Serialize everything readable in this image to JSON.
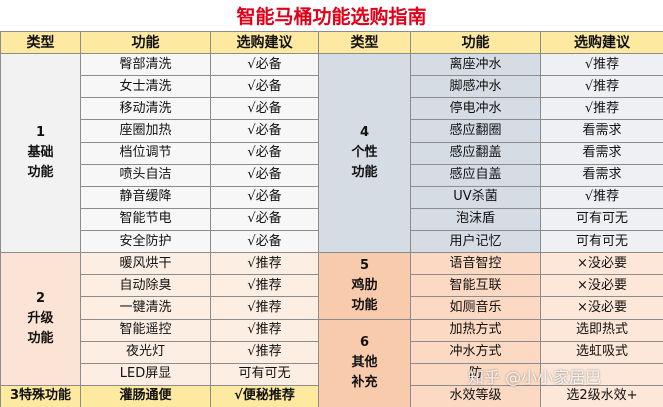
{
  "title": "智能马桶功能选购指南",
  "headers": [
    "类型",
    "功能",
    "选购建议",
    "类型",
    "功能",
    "选购建议"
  ],
  "left": [
    {
      "type": [
        "1",
        "基础",
        "功能"
      ],
      "type_color": "#f2f2f2",
      "func_color": "#f7f7f7",
      "advice_color": "#f7f7f7",
      "rows": [
        {
          "function": "臀部清洗",
          "advice": "√必备"
        },
        {
          "function": "女士清洗",
          "advice": "√必备"
        },
        {
          "function": "移动清洗",
          "advice": "√必备"
        },
        {
          "function": "座圈加热",
          "advice": "√必备"
        },
        {
          "function": "档位调节",
          "advice": "√必备"
        },
        {
          "function": "喷头自洁",
          "advice": "√必备"
        },
        {
          "function": "静音缓降",
          "advice": "√必备"
        },
        {
          "function": "智能节电",
          "advice": "√必备"
        },
        {
          "function": "安全防护",
          "advice": "√必备"
        }
      ]
    },
    {
      "type": [
        "2",
        "升级",
        "功能"
      ],
      "type_color": "#fbe4d5",
      "func_color": "#fdeee4",
      "advice_color": "#fdeee4",
      "rows": [
        {
          "function": "暖风烘干",
          "advice": "√推荐"
        },
        {
          "function": "自动除臭",
          "advice": "√推荐"
        },
        {
          "function": "一键清洗",
          "advice": "√推荐"
        },
        {
          "function": "智能遥控",
          "advice": "√推荐"
        },
        {
          "function": "夜光灯",
          "advice": "√推荐"
        },
        {
          "function": "LED屏显",
          "advice": "可有可无"
        }
      ]
    },
    {
      "type": [
        "3特殊功能"
      ],
      "type_color": "#fde9a0",
      "func_color": "#fde9a0",
      "advice_color": "#fde9a0",
      "bold": true,
      "rows": [
        {
          "function": "灌肠通便",
          "advice": "√便秘推荐"
        }
      ]
    }
  ],
  "right": [
    {
      "type": [
        "4",
        "个性",
        "功能"
      ],
      "type_color": "#d6dce4",
      "func_color": "#d6dce4",
      "advice_color": "#eef0f3",
      "rows": [
        {
          "function": "离座冲水",
          "advice": "√推荐"
        },
        {
          "function": "脚感冲水",
          "advice": "√推荐"
        },
        {
          "function": "停电冲水",
          "advice": "√推荐"
        },
        {
          "function": "感应翻圈",
          "advice": "看需求"
        },
        {
          "function": "感应翻盖",
          "advice": "看需求"
        },
        {
          "function": "感应自盖",
          "advice": "看需求"
        },
        {
          "function": "UV杀菌",
          "advice": "√推荐"
        },
        {
          "function": "泡沫盾",
          "advice": "可有可无"
        },
        {
          "function": "用户记忆",
          "advice": "可有可无"
        }
      ]
    },
    {
      "type": [
        "5",
        "鸡肋",
        "功能"
      ],
      "type_color": "#f8cbad",
      "func_color": "#fbd9c2",
      "advice_color": "#fde7d8",
      "rows": [
        {
          "function": "语音智控",
          "advice": "×没必要"
        },
        {
          "function": "智能互联",
          "advice": "×没必要"
        },
        {
          "function": "如厕音乐",
          "advice": "×没必要"
        }
      ]
    },
    {
      "type": [
        "6",
        "其他",
        "补充"
      ],
      "type_color": "#f8cbad",
      "func_color": "#fbd9c2",
      "advice_color": "#fde7d8",
      "rows": [
        {
          "function": "加热方式",
          "advice": "选即热式"
        },
        {
          "function": "冲水方式",
          "advice": "选虹吸式"
        },
        {
          "function": "防"
        },
        {
          "function": "水效等级",
          "advice": "选2级水效+"
        }
      ]
    }
  ],
  "watermark": "知乎 @小小家居巴"
}
